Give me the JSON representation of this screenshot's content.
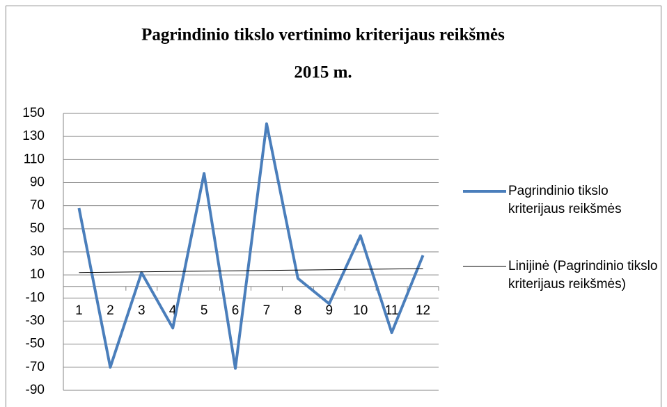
{
  "chart_data": {
    "type": "line",
    "title": [
      "Pagrindinio tikslo vertinimo kriterijaus reikšmės",
      "2015 m."
    ],
    "categories": [
      "1",
      "2",
      "3",
      "4",
      "5",
      "6",
      "7",
      "8",
      "9",
      "10",
      "11",
      "12"
    ],
    "series": [
      {
        "name": "Pagrindinio tikslo kriterijaus reikšmės",
        "color": "#4a7ebb",
        "values": [
          68,
          -70,
          12,
          -36,
          98,
          -71,
          141,
          7,
          -15,
          44,
          -40,
          27
        ]
      },
      {
        "name": "Linijinė (Pagrindinio tikslo kriterijaus reikšmės)",
        "color": "#000000",
        "trendline": "linear"
      }
    ],
    "ylim": [
      -90,
      150
    ],
    "yticks": [
      -90,
      -70,
      -50,
      -30,
      -10,
      10,
      30,
      50,
      70,
      90,
      110,
      130,
      150
    ],
    "grid": true,
    "legend": "right"
  }
}
